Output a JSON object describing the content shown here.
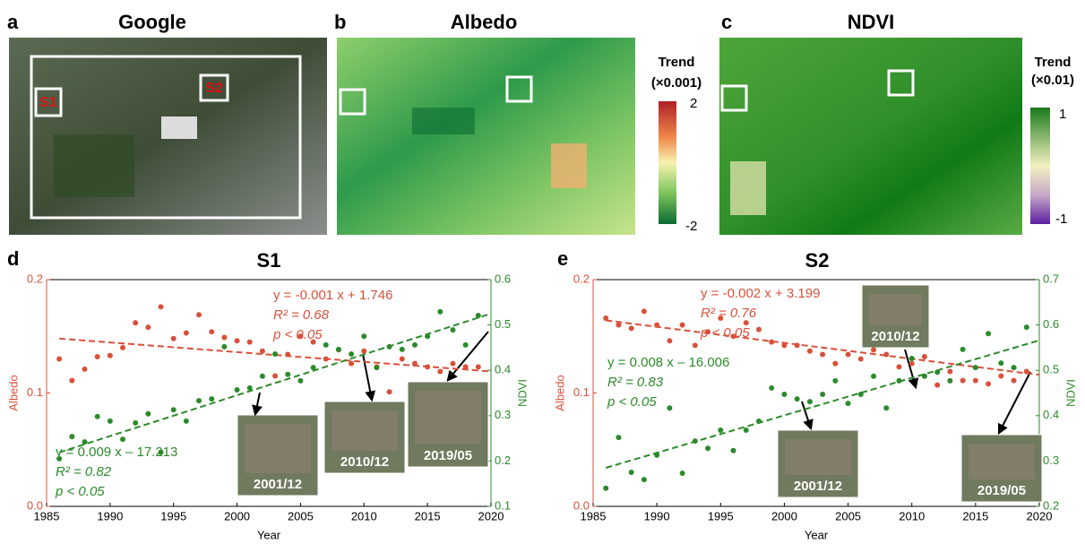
{
  "panels": {
    "a": {
      "letter": "a",
      "title": "Google",
      "boxes": [
        "S1",
        "S2"
      ]
    },
    "b": {
      "letter": "b",
      "title": "Albedo",
      "colorbar": {
        "title": "Trend",
        "unit": "(×0.001)",
        "max": "2",
        "min": "-2"
      }
    },
    "c": {
      "letter": "c",
      "title": "NDVI",
      "colorbar": {
        "title": "Trend",
        "unit": "(×0.01)",
        "max": "1",
        "min": "-1"
      }
    }
  },
  "chart_data": [
    {
      "type": "scatter",
      "letter": "d",
      "title": "S1",
      "x_label": "Year",
      "y_label": "Albedo",
      "y2_label": "NDVI",
      "xlim": [
        1985,
        2020
      ],
      "xticks": [
        1985,
        1990,
        1995,
        2000,
        2005,
        2010,
        2015,
        2020
      ],
      "ylim": [
        0,
        0.2
      ],
      "yticks": [
        {
          "value": 0,
          "label": "0.0"
        },
        0.1,
        0.2
      ],
      "y2lim": [
        0.1,
        0.6
      ],
      "y2ticks": [
        0.1,
        0.2,
        0.3,
        0.4,
        0.5,
        0.6
      ],
      "x": [
        1986,
        1987,
        1988,
        1989,
        1990,
        1991,
        1992,
        1993,
        1994,
        1995,
        1996,
        1997,
        1998,
        1999,
        2000,
        2001,
        2002,
        2003,
        2004,
        2005,
        2006,
        2007,
        2008,
        2009,
        2010,
        2011,
        2012,
        2013,
        2014,
        2015,
        2016,
        2017,
        2018,
        2019
      ],
      "series": [
        {
          "name": "Albedo",
          "color": "#d9503a",
          "values": [
            0.13,
            0.111,
            0.121,
            0.132,
            0.133,
            0.14,
            0.162,
            0.158,
            0.176,
            0.148,
            0.153,
            0.169,
            0.154,
            0.149,
            0.146,
            0.145,
            0.137,
            0.115,
            0.134,
            0.15,
            0.145,
            0.13,
            0.138,
            0.126,
            0.137,
            0.123,
            0.101,
            0.13,
            0.126,
            0.123,
            0.119,
            0.126,
            0.123,
            0.123
          ],
          "trend": {
            "x": [
              1986,
              2020
            ],
            "values": [
              0.148,
              0.119
            ]
          },
          "annotation": [
            "y = -0.001 x + 1.746",
            "R² = 0.68",
            "p < 0.05"
          ]
        },
        {
          "name": "NDVI",
          "color": "#2b8a2b",
          "axis": "y2",
          "values": [
            0.205,
            0.254,
            0.242,
            0.298,
            0.288,
            0.248,
            0.284,
            0.304,
            0.219,
            0.313,
            0.288,
            0.333,
            0.337,
            0.452,
            0.357,
            0.361,
            0.387,
            0.436,
            0.391,
            0.377,
            0.406,
            0.456,
            0.446,
            0.436,
            0.475,
            0.406,
            0.452,
            0.446,
            0.456,
            0.475,
            0.529,
            0.489,
            0.456,
            0.521
          ],
          "trend": {
            "x": [
              1986,
              2020
            ],
            "values": [
              0.219,
              0.525
            ]
          },
          "annotation": [
            "y = 0.009 x – 17.213",
            "R² = 0.82",
            "p < 0.05"
          ]
        }
      ],
      "photo_labels": [
        "2001/12",
        "2010/12",
        "2019/05"
      ]
    },
    {
      "type": "scatter",
      "letter": "e",
      "title": "S2",
      "x_label": "Year",
      "y_label": "Albedo",
      "y2_label": "NDVI",
      "xlim": [
        1985,
        2020
      ],
      "xticks": [
        1985,
        1990,
        1995,
        2000,
        2005,
        2010,
        2015,
        2020
      ],
      "ylim": [
        0,
        0.2
      ],
      "yticks": [
        {
          "value": 0,
          "label": "0.0"
        },
        0.1,
        0.2
      ],
      "y2lim": [
        0.2,
        0.7
      ],
      "y2ticks": [
        0.2,
        0.3,
        0.4,
        0.5,
        0.6,
        0.7
      ],
      "x": [
        1986,
        1987,
        1988,
        1989,
        1990,
        1991,
        1992,
        1993,
        1994,
        1995,
        1996,
        1997,
        1998,
        1999,
        2000,
        2001,
        2002,
        2003,
        2004,
        2005,
        2006,
        2007,
        2008,
        2009,
        2010,
        2011,
        2012,
        2013,
        2014,
        2015,
        2016,
        2017,
        2018,
        2019
      ],
      "series": [
        {
          "name": "Albedo",
          "color": "#d9503a",
          "values": [
            0.166,
            0.16,
            0.157,
            0.172,
            0.16,
            0.146,
            0.16,
            0.142,
            0.154,
            0.166,
            0.15,
            0.162,
            0.156,
            0.145,
            0.142,
            0.142,
            0.137,
            0.134,
            0.126,
            0.134,
            0.13,
            0.138,
            0.134,
            0.123,
            0.126,
            0.132,
            0.107,
            0.119,
            0.111,
            0.111,
            0.108,
            0.115,
            0.111,
            0.119
          ],
          "trend": {
            "x": [
              1986,
              2020
            ],
            "values": [
              0.164,
              0.116
            ]
          },
          "annotation": [
            "y = -0.002 x + 3.199",
            "R² = 0.76",
            "p < 0.05"
          ]
        },
        {
          "name": "NDVI",
          "color": "#2b8a2b",
          "axis": "y2",
          "values": [
            0.24,
            0.352,
            0.275,
            0.259,
            0.313,
            0.417,
            0.273,
            0.344,
            0.328,
            0.368,
            0.323,
            0.368,
            0.388,
            0.461,
            0.447,
            0.437,
            0.431,
            0.447,
            0.477,
            0.427,
            0.447,
            0.487,
            0.417,
            0.477,
            0.526,
            0.487,
            0.496,
            0.477,
            0.546,
            0.506,
            0.581,
            0.516,
            0.506,
            0.595
          ],
          "trend": {
            "x": [
              1986,
              2020
            ],
            "values": [
              0.285,
              0.566
            ]
          },
          "annotation": [
            "y = 0.008 x – 16.006",
            "R² = 0.83",
            "p < 0.05"
          ]
        }
      ],
      "photo_labels": [
        "2010/12",
        "2001/12",
        "2019/05"
      ]
    }
  ]
}
